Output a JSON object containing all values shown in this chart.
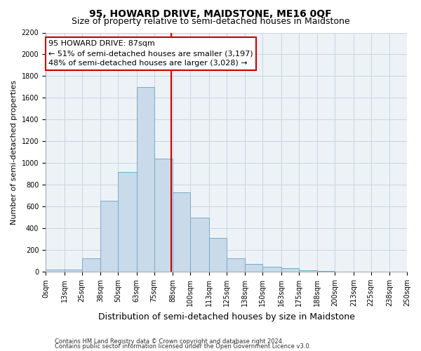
{
  "title": "95, HOWARD DRIVE, MAIDSTONE, ME16 0QF",
  "subtitle": "Size of property relative to semi-detached houses in Maidstone",
  "xlabel": "Distribution of semi-detached houses by size in Maidstone",
  "ylabel": "Number of semi-detached properties",
  "footer_line1": "Contains HM Land Registry data © Crown copyright and database right 2024.",
  "footer_line2": "Contains public sector information licensed under the Open Government Licence v3.0.",
  "annotation_title": "95 HOWARD DRIVE: 87sqm",
  "annotation_line1": "← 51% of semi-detached houses are smaller (3,197)",
  "annotation_line2": "48% of semi-detached houses are larger (3,028) →",
  "property_size": 87,
  "bin_edges": [
    0,
    13,
    25,
    38,
    50,
    63,
    75,
    88,
    100,
    113,
    125,
    138,
    150,
    163,
    175,
    188,
    200,
    213,
    225,
    238,
    250
  ],
  "bin_labels": [
    "0sqm",
    "13sqm",
    "25sqm",
    "38sqm",
    "50sqm",
    "63sqm",
    "75sqm",
    "88sqm",
    "100sqm",
    "113sqm",
    "125sqm",
    "138sqm",
    "150sqm",
    "163sqm",
    "175sqm",
    "188sqm",
    "200sqm",
    "213sqm",
    "225sqm",
    "238sqm",
    "250sqm"
  ],
  "counts": [
    20,
    20,
    120,
    650,
    920,
    1700,
    1040,
    730,
    500,
    310,
    120,
    70,
    45,
    30,
    10,
    5,
    2,
    1,
    0,
    0
  ],
  "bar_color": "#c9daea",
  "bar_edge_color": "#7aaac8",
  "vline_color": "#cc0000",
  "annotation_box_facecolor": "#ffffff",
  "annotation_box_edgecolor": "#cc0000",
  "grid_color": "#c8d4e0",
  "bg_color": "#edf2f7",
  "ylim": [
    0,
    2200
  ],
  "yticks": [
    0,
    200,
    400,
    600,
    800,
    1000,
    1200,
    1400,
    1600,
    1800,
    2000,
    2200
  ],
  "title_fontsize": 10,
  "subtitle_fontsize": 9,
  "ylabel_fontsize": 8,
  "xlabel_fontsize": 9,
  "tick_fontsize": 7,
  "footer_fontsize": 6,
  "annot_fontsize": 8
}
